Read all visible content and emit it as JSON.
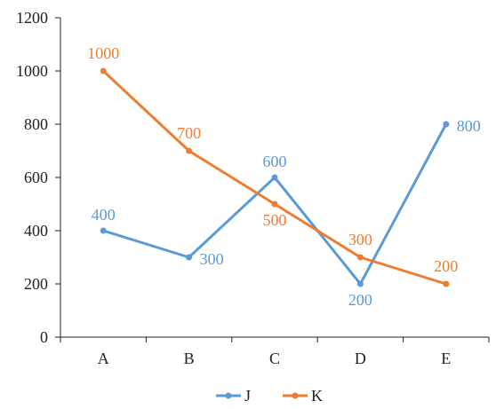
{
  "chart_data": {
    "type": "line",
    "categories": [
      "A",
      "B",
      "C",
      "D",
      "E"
    ],
    "ylim": [
      0,
      1200
    ],
    "yticks": [
      0,
      200,
      400,
      600,
      800,
      1000,
      1200
    ],
    "grid": false,
    "legend_position": "bottom",
    "series": [
      {
        "name": "J",
        "color": "#5B9BD5",
        "values": [
          400,
          300,
          600,
          200,
          800
        ]
      },
      {
        "name": "K",
        "color": "#ED7D31",
        "values": [
          1000,
          700,
          500,
          300,
          200
        ]
      }
    ]
  }
}
